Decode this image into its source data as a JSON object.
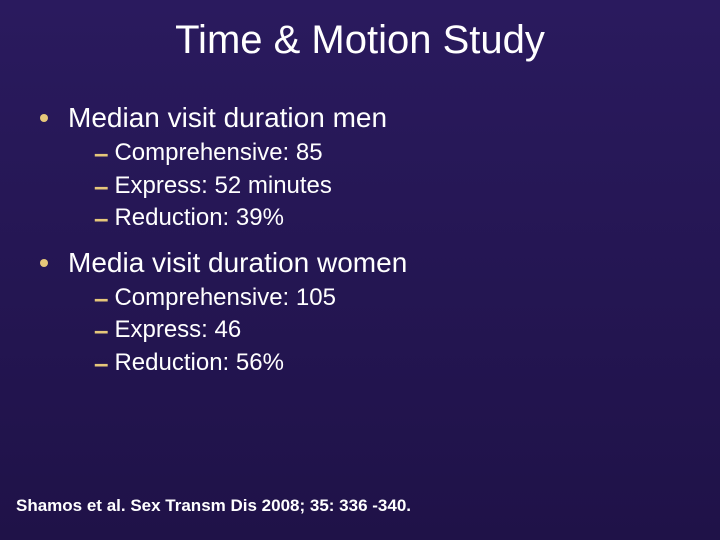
{
  "slide": {
    "title": "Time & Motion Study",
    "background_gradient_top": "#2a1a5e",
    "background_gradient_bottom": "#1f1248",
    "text_color": "#ffffff",
    "accent_color": "#e6c77a",
    "title_fontsize": 40,
    "bullet_fontsize": 28,
    "sub_fontsize": 24,
    "citation_fontsize": 17
  },
  "bullets": [
    {
      "text": "Median visit duration men",
      "subs": [
        {
          "text": "Comprehensive: 85"
        },
        {
          "text": "Express: 52 minutes"
        },
        {
          "text": "Reduction: 39%"
        }
      ]
    },
    {
      "text": "Media visit duration women",
      "subs": [
        {
          "text": "Comprehensive: 105"
        },
        {
          "text": "Express: 46"
        },
        {
          "text": "Reduction: 56%"
        }
      ]
    }
  ],
  "citation": "Shamos et al. Sex Transm Dis 2008; 35: 336 -340."
}
